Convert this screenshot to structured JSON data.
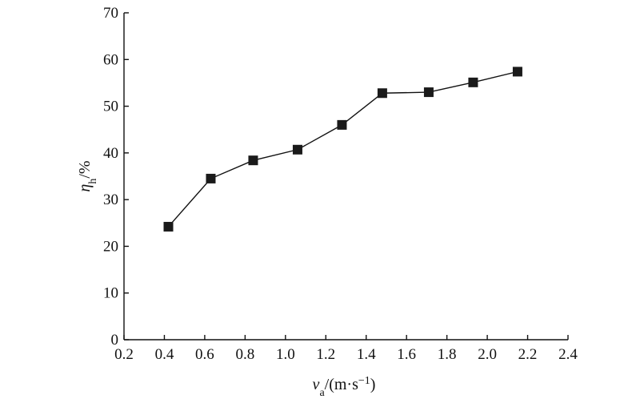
{
  "chart_data": {
    "type": "line",
    "title": "",
    "xlabel": {
      "symbol": "v",
      "subscript": "a",
      "unit": "/(m·s",
      "exponent": "−1",
      "close": ")"
    },
    "ylabel": {
      "symbol": "η",
      "subscript": "h",
      "unit": "/%"
    },
    "xlim": [
      0.2,
      2.4
    ],
    "ylim": [
      0,
      70
    ],
    "xticks": [
      0.2,
      0.4,
      0.6,
      0.8,
      1.0,
      1.2,
      1.4,
      1.6,
      1.8,
      2.0,
      2.2,
      2.4
    ],
    "xtick_labels": [
      "0.2",
      "0.4",
      "0.6",
      "0.8",
      "1.0",
      "1.2",
      "1.4",
      "1.6",
      "1.8",
      "2.0",
      "2.2",
      "2.4"
    ],
    "yticks": [
      0,
      10,
      20,
      30,
      40,
      50,
      60,
      70
    ],
    "ytick_labels": [
      "0",
      "10",
      "20",
      "30",
      "40",
      "50",
      "60",
      "70"
    ],
    "grid": false,
    "legend": "none",
    "series": [
      {
        "marker": "square",
        "color": "#1a1a1a",
        "x": [
          0.42,
          0.63,
          0.84,
          1.06,
          1.28,
          1.48,
          1.71,
          1.93,
          2.15
        ],
        "y": [
          24.2,
          34.5,
          38.4,
          40.7,
          46.0,
          52.8,
          53.0,
          55.1,
          57.4
        ]
      }
    ]
  }
}
